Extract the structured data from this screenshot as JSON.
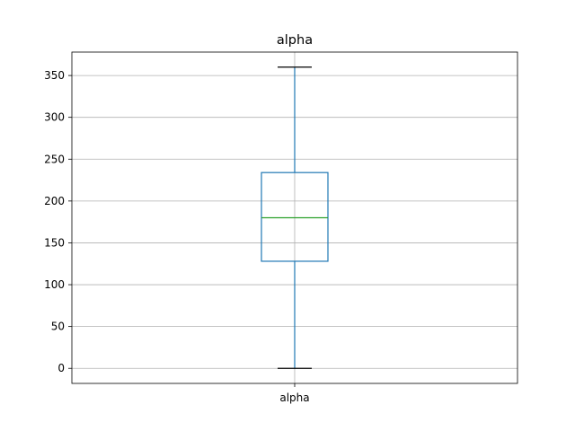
{
  "chart_data": {
    "type": "box",
    "title": "alpha",
    "categories": [
      "alpha"
    ],
    "boxes": [
      {
        "name": "alpha",
        "min": 0,
        "q1": 128,
        "median": 180,
        "q3": 234,
        "max": 360
      }
    ],
    "ylim": [
      -18,
      378
    ],
    "yticks": [
      0,
      50,
      100,
      150,
      200,
      250,
      300,
      350
    ],
    "grid": true,
    "colors": {
      "box": "#1f77b4",
      "whisker": "#1f77b4",
      "median": "#2ca02c",
      "cap": "#000000"
    }
  }
}
